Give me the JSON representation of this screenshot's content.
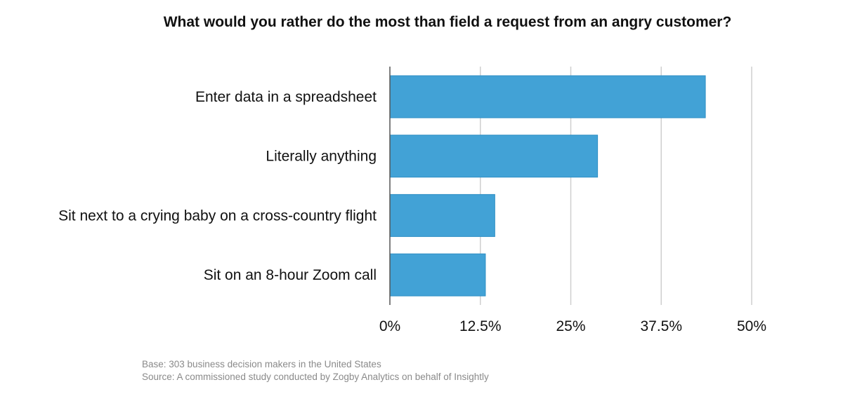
{
  "chart_data": {
    "type": "bar",
    "orientation": "horizontal",
    "title": "What would you rather do the most than field a request from an angry customer?",
    "categories": [
      "Enter data in a spreadsheet",
      "Literally anything",
      "Sit next to a crying baby on a cross-country flight",
      "Sit on an 8-hour Zoom call"
    ],
    "values": [
      43.6,
      28.7,
      14.5,
      13.2
    ],
    "value_unit": "%",
    "xlim": [
      0,
      50
    ],
    "x_ticks": [
      "0%",
      "12.5%",
      "25%",
      "37.5%",
      "50%"
    ],
    "grid": "vertical",
    "bar_color": "#42a2d6",
    "bar_border_color": "#2f8fc4"
  },
  "footnotes": {
    "base": "Base: 303 business decision makers in the United States",
    "source": "Source:  A commissioned study conducted by Zogby Analytics on behalf of Insightly"
  }
}
